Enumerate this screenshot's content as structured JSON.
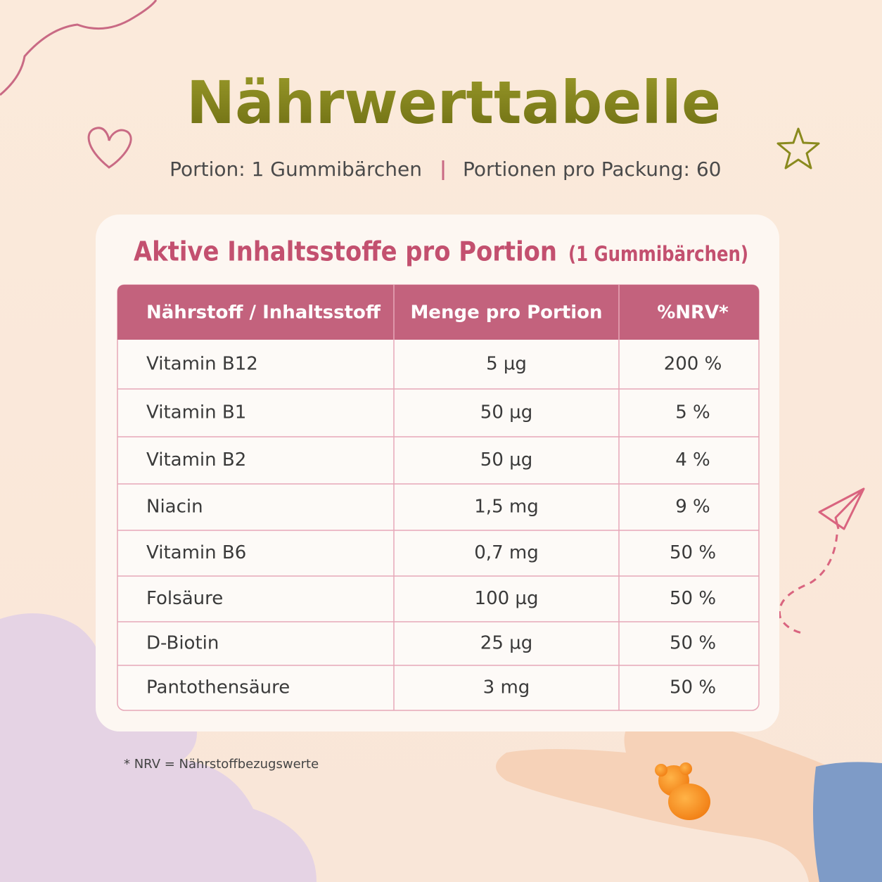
{
  "header": {
    "title": "Nährwerttabelle",
    "serving": "Portion: 1 Gummibärchen",
    "servings_per_pack": "Portionen pro Packung: 60"
  },
  "card": {
    "title": "Aktive Inhaltsstoffe pro Portion",
    "subtitle": "(1 Gummibärchen)"
  },
  "table": {
    "columns": [
      "Nährstoff / Inhaltsstoff",
      "Menge pro Portion",
      "%NRV*"
    ],
    "rows": [
      [
        "Vitamin B12",
        "5 µg",
        "200 %"
      ],
      [
        "Vitamin B1",
        "50 µg",
        "5 %"
      ],
      [
        "Vitamin B2",
        "50 µg",
        "4 %"
      ],
      [
        "Niacin",
        "1,5 mg",
        "9 %"
      ],
      [
        "Vitamin B6",
        "0,7 mg",
        "50 %"
      ],
      [
        "Folsäure",
        "100 µg",
        "50 %"
      ],
      [
        "D-Biotin",
        "25 µg",
        "50 %"
      ],
      [
        "Pantothensäure",
        "3 mg",
        "50 %"
      ]
    ]
  },
  "footnote": "* NRV = Nährstoffbezugswerte"
}
